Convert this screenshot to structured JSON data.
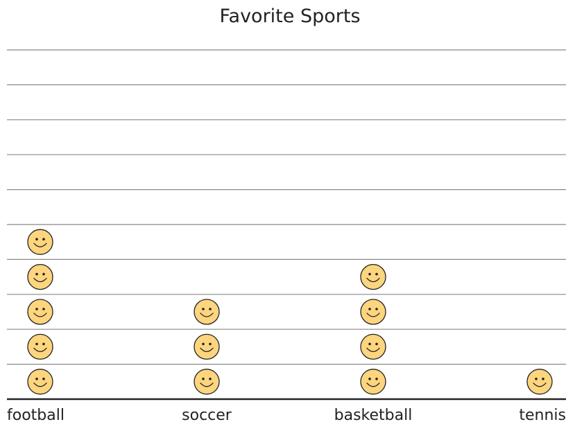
{
  "chart_data": {
    "type": "pictograph",
    "title": "Favorite Sports",
    "categories": [
      "football",
      "soccer",
      "basketball",
      "tennis"
    ],
    "values": [
      5,
      3,
      4,
      1
    ],
    "ylim": [
      0,
      10
    ],
    "icon": "smiley-face-icon",
    "colors": {
      "icon_fill": "#FCD57E",
      "icon_stroke": "#222222",
      "gridline": "#888888",
      "baseline": "#222222"
    }
  }
}
